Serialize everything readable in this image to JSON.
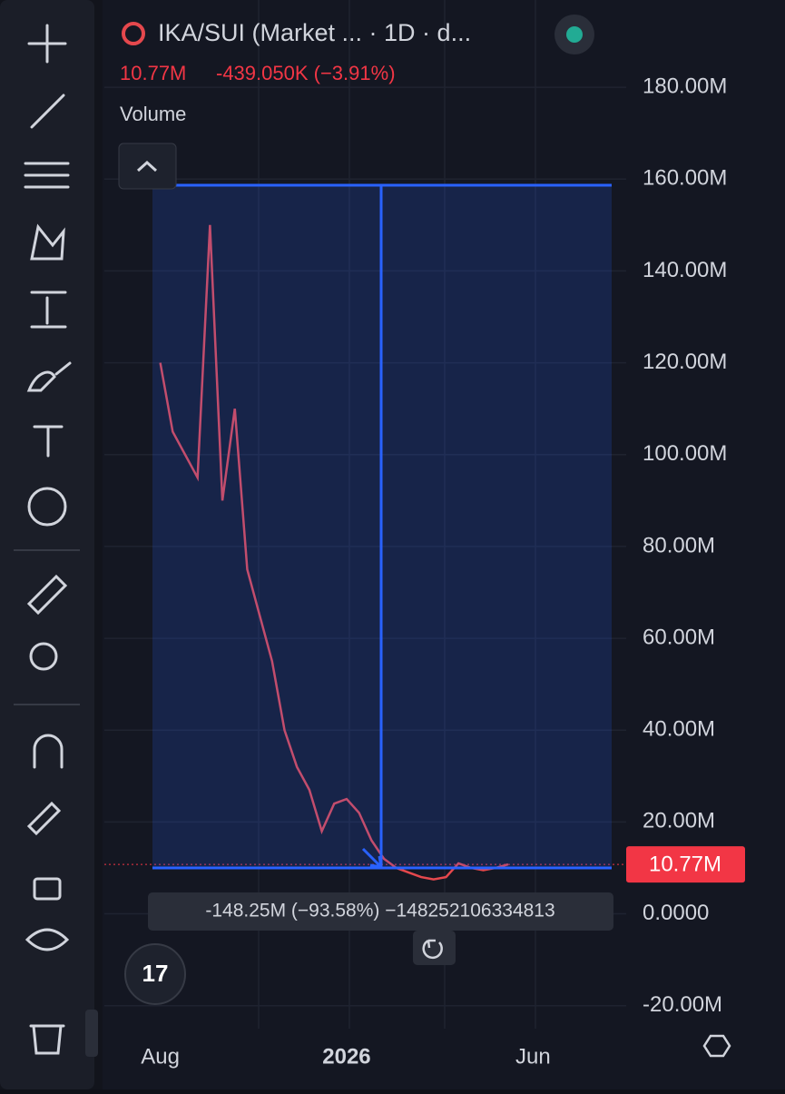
{
  "header": {
    "symbol": "IKA/SUI (Market ... · 1D · d...",
    "change": "-439.050K (−3.91%)",
    "pane": "Volume"
  },
  "measure": {
    "label": "-148.25M (−93.58%) −148252106334813"
  },
  "chart_data": {
    "type": "line",
    "color": "#e5484d",
    "categories": [
      null,
      null,
      null,
      null,
      "Aug",
      null,
      null,
      null,
      null,
      null,
      null,
      null,
      null,
      null,
      null,
      null,
      null,
      null,
      null,
      "2026",
      null,
      null,
      null,
      null,
      null,
      null,
      null,
      null,
      null,
      null,
      null,
      null,
      null,
      null,
      "Jun",
      null,
      null,
      null,
      null,
      null,
      null,
      null
    ],
    "values": [
      null,
      null,
      null,
      null,
      120,
      105,
      100,
      95,
      150,
      90,
      110,
      75,
      65,
      55,
      40,
      32,
      27,
      18,
      24,
      25,
      22,
      16,
      12,
      10,
      9,
      8,
      7.5,
      8,
      11,
      10,
      9.5,
      10,
      10.77,
      null,
      null,
      null,
      null,
      null,
      null,
      null,
      null,
      null
    ],
    "ylim": [
      -25,
      199
    ],
    "yticks": [
      {
        "value": -20,
        "label": "-20.00M"
      },
      {
        "value": 0,
        "label": "0.0000"
      },
      {
        "value": 20,
        "label": "20.00M"
      },
      {
        "value": 40,
        "label": "40.00M"
      },
      {
        "value": 60,
        "label": "60.00M"
      },
      {
        "value": 80,
        "label": "80.00M"
      },
      {
        "value": 100,
        "label": "100.00M"
      },
      {
        "value": 120,
        "label": "120.00M"
      },
      {
        "value": 140,
        "label": "140.00M"
      },
      {
        "value": 160,
        "label": "160.00M"
      },
      {
        "value": 180,
        "label": "180.00M"
      }
    ],
    "last_value": 10.77,
    "last_value_label": "10.77M",
    "grid": true
  }
}
